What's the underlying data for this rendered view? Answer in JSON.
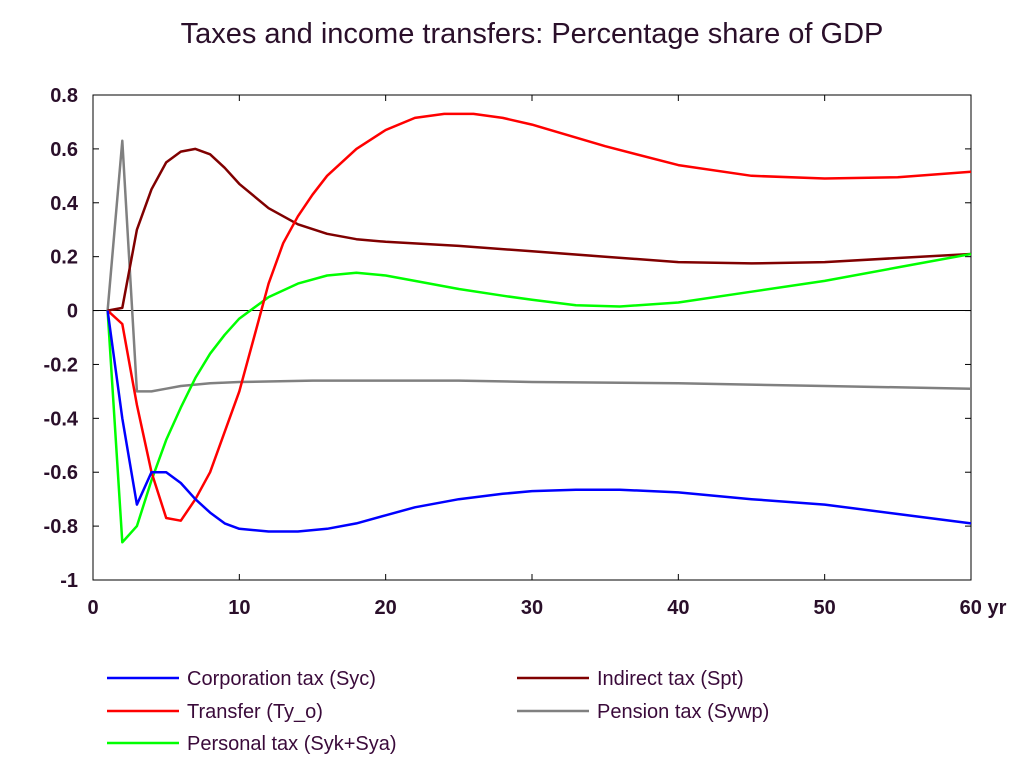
{
  "chart_data": {
    "type": "line",
    "title": "Taxes and income transfers: Percentage share of GDP",
    "xlabel": "",
    "ylabel": "",
    "x_unit": "yr",
    "xlim": [
      0,
      60
    ],
    "ylim": [
      -1,
      0.8
    ],
    "x_ticks": [
      0,
      10,
      20,
      30,
      40,
      50,
      60
    ],
    "x_tick_labels": [
      "0",
      "10",
      "20",
      "30",
      "40",
      "50",
      "60 yr"
    ],
    "y_ticks": [
      -1,
      -0.8,
      -0.6,
      -0.4,
      -0.2,
      0,
      0.2,
      0.4,
      0.6,
      0.8
    ],
    "y_tick_labels": [
      "-1",
      "-0.8",
      "-0.6",
      "-0.4",
      "-0.2",
      "0",
      "0.2",
      "0.4",
      "0.6",
      "0.8"
    ],
    "grid": false,
    "zero_line": true,
    "legend_position": "bottom",
    "series": [
      {
        "name": "Corporation tax (Syc)",
        "color": "#0000ff",
        "points": [
          [
            1,
            0
          ],
          [
            2,
            -0.4
          ],
          [
            3,
            -0.72
          ],
          [
            4,
            -0.6
          ],
          [
            5,
            -0.6
          ],
          [
            6,
            -0.64
          ],
          [
            7,
            -0.7
          ],
          [
            8,
            -0.75
          ],
          [
            9,
            -0.79
          ],
          [
            10,
            -0.81
          ],
          [
            12,
            -0.82
          ],
          [
            14,
            -0.82
          ],
          [
            16,
            -0.81
          ],
          [
            18,
            -0.79
          ],
          [
            20,
            -0.76
          ],
          [
            22,
            -0.73
          ],
          [
            25,
            -0.7
          ],
          [
            28,
            -0.68
          ],
          [
            30,
            -0.67
          ],
          [
            33,
            -0.665
          ],
          [
            36,
            -0.665
          ],
          [
            40,
            -0.675
          ],
          [
            45,
            -0.7
          ],
          [
            50,
            -0.72
          ],
          [
            55,
            -0.755
          ],
          [
            60,
            -0.79
          ]
        ]
      },
      {
        "name": "Transfer (Ty_o)",
        "color": "#ff0000",
        "points": [
          [
            1,
            0
          ],
          [
            2,
            -0.05
          ],
          [
            3,
            -0.35
          ],
          [
            4,
            -0.6
          ],
          [
            5,
            -0.77
          ],
          [
            6,
            -0.78
          ],
          [
            7,
            -0.7
          ],
          [
            8,
            -0.6
          ],
          [
            9,
            -0.45
          ],
          [
            10,
            -0.3
          ],
          [
            11,
            -0.1
          ],
          [
            12,
            0.1
          ],
          [
            13,
            0.25
          ],
          [
            14,
            0.35
          ],
          [
            15,
            0.43
          ],
          [
            16,
            0.5
          ],
          [
            18,
            0.6
          ],
          [
            20,
            0.67
          ],
          [
            22,
            0.715
          ],
          [
            24,
            0.73
          ],
          [
            26,
            0.73
          ],
          [
            28,
            0.715
          ],
          [
            30,
            0.69
          ],
          [
            35,
            0.61
          ],
          [
            40,
            0.54
          ],
          [
            45,
            0.5
          ],
          [
            50,
            0.49
          ],
          [
            55,
            0.495
          ],
          [
            60,
            0.515
          ]
        ]
      },
      {
        "name": "Personal tax (Syk+Sya)",
        "color": "#00ff00",
        "points": [
          [
            1,
            0
          ],
          [
            2,
            -0.86
          ],
          [
            3,
            -0.8
          ],
          [
            4,
            -0.63
          ],
          [
            5,
            -0.48
          ],
          [
            6,
            -0.36
          ],
          [
            7,
            -0.25
          ],
          [
            8,
            -0.16
          ],
          [
            9,
            -0.09
          ],
          [
            10,
            -0.03
          ],
          [
            12,
            0.05
          ],
          [
            14,
            0.1
          ],
          [
            16,
            0.13
          ],
          [
            18,
            0.14
          ],
          [
            20,
            0.13
          ],
          [
            22,
            0.11
          ],
          [
            25,
            0.08
          ],
          [
            28,
            0.055
          ],
          [
            30,
            0.04
          ],
          [
            33,
            0.02
          ],
          [
            36,
            0.015
          ],
          [
            40,
            0.03
          ],
          [
            45,
            0.07
          ],
          [
            50,
            0.11
          ],
          [
            55,
            0.16
          ],
          [
            60,
            0.21
          ]
        ]
      },
      {
        "name": "Indirect tax (Spt)",
        "color": "#800000",
        "points": [
          [
            1,
            0
          ],
          [
            2,
            0.01
          ],
          [
            3,
            0.3
          ],
          [
            4,
            0.45
          ],
          [
            5,
            0.55
          ],
          [
            6,
            0.59
          ],
          [
            7,
            0.6
          ],
          [
            8,
            0.58
          ],
          [
            9,
            0.53
          ],
          [
            10,
            0.47
          ],
          [
            12,
            0.38
          ],
          [
            14,
            0.32
          ],
          [
            16,
            0.285
          ],
          [
            18,
            0.265
          ],
          [
            20,
            0.255
          ],
          [
            25,
            0.24
          ],
          [
            30,
            0.22
          ],
          [
            35,
            0.2
          ],
          [
            40,
            0.18
          ],
          [
            45,
            0.175
          ],
          [
            50,
            0.18
          ],
          [
            55,
            0.195
          ],
          [
            60,
            0.21
          ]
        ]
      },
      {
        "name": "Pension tax (Sywp)",
        "color": "#808080",
        "points": [
          [
            1,
            0
          ],
          [
            2,
            0.63
          ],
          [
            3,
            -0.3
          ],
          [
            4,
            -0.3
          ],
          [
            5,
            -0.29
          ],
          [
            6,
            -0.28
          ],
          [
            8,
            -0.27
          ],
          [
            10,
            -0.265
          ],
          [
            15,
            -0.26
          ],
          [
            20,
            -0.26
          ],
          [
            25,
            -0.26
          ],
          [
            30,
            -0.265
          ],
          [
            40,
            -0.27
          ],
          [
            50,
            -0.28
          ],
          [
            60,
            -0.29
          ]
        ]
      }
    ]
  }
}
